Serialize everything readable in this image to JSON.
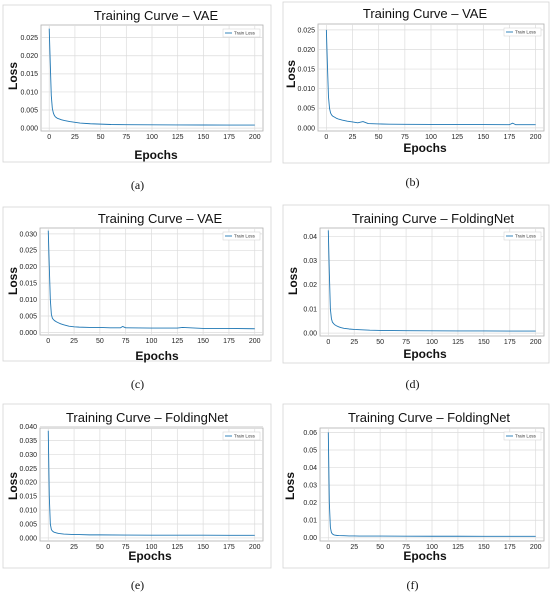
{
  "chart_data": [
    {
      "type": "line",
      "title": "Training Curve – VAE",
      "xlabel": "Epochs",
      "ylabel": "Loss",
      "caption": "(a)",
      "xlim": [
        -8,
        208
      ],
      "ylim": [
        -0.0008,
        0.0285
      ],
      "xticks": [
        0,
        25,
        50,
        75,
        100,
        125,
        150,
        175,
        200
      ],
      "yticks": [
        0.0,
        0.005,
        0.01,
        0.015,
        0.02,
        0.025
      ],
      "ytick_labels": [
        "0.000",
        "0.005",
        "0.010",
        "0.015",
        "0.020",
        "0.025"
      ],
      "grid": true,
      "legend_position": "top-right",
      "series": [
        {
          "name": "Train Loss",
          "color": "#1f77b4",
          "x": [
            0,
            1,
            2,
            3,
            4,
            5,
            6,
            8,
            10,
            12,
            15,
            20,
            25,
            30,
            40,
            50,
            60,
            75,
            100,
            125,
            150,
            175,
            200
          ],
          "y": [
            0.0275,
            0.018,
            0.009,
            0.0055,
            0.0042,
            0.0035,
            0.0031,
            0.0027,
            0.0025,
            0.0023,
            0.0021,
            0.0018,
            0.0016,
            0.0014,
            0.0012,
            0.0011,
            0.001,
            0.00095,
            0.0009,
            0.00088,
            0.00086,
            0.00085,
            0.00085
          ]
        }
      ]
    },
    {
      "type": "line",
      "title": "Training Curve – VAE",
      "xlabel": "Epochs",
      "ylabel": "Loss",
      "caption": "(b)",
      "xlim": [
        -8,
        208
      ],
      "ylim": [
        -0.0008,
        0.0265
      ],
      "xticks": [
        0,
        25,
        50,
        75,
        100,
        125,
        150,
        175,
        200
      ],
      "yticks": [
        0.0,
        0.005,
        0.01,
        0.015,
        0.02,
        0.025
      ],
      "ytick_labels": [
        "0.000",
        "0.005",
        "0.010",
        "0.015",
        "0.020",
        "0.025"
      ],
      "grid": true,
      "legend_position": "top-right",
      "series": [
        {
          "name": "Train Loss",
          "color": "#1f77b4",
          "x": [
            0,
            1,
            2,
            3,
            4,
            5,
            6,
            8,
            10,
            12,
            15,
            20,
            25,
            30,
            35,
            40,
            50,
            60,
            75,
            100,
            125,
            150,
            175,
            178,
            181,
            200
          ],
          "y": [
            0.025,
            0.016,
            0.008,
            0.005,
            0.0038,
            0.0033,
            0.003,
            0.0027,
            0.0024,
            0.0022,
            0.002,
            0.0017,
            0.0015,
            0.0013,
            0.0016,
            0.0011,
            0.001,
            0.00095,
            0.0009,
            0.00088,
            0.00085,
            0.00083,
            0.00082,
            0.0012,
            0.0008,
            0.0008
          ]
        }
      ]
    },
    {
      "type": "line",
      "title": "Training Curve – VAE",
      "xlabel": "Epochs",
      "ylabel": "Loss",
      "caption": "(c)",
      "xlim": [
        -8,
        208
      ],
      "ylim": [
        -0.0008,
        0.0318
      ],
      "xticks": [
        0,
        25,
        50,
        75,
        100,
        125,
        150,
        175,
        200
      ],
      "yticks": [
        0.0,
        0.005,
        0.01,
        0.015,
        0.02,
        0.025,
        0.03
      ],
      "ytick_labels": [
        "0.000",
        "0.005",
        "0.010",
        "0.015",
        "0.020",
        "0.025",
        "0.030"
      ],
      "grid": true,
      "legend_position": "top-right",
      "series": [
        {
          "name": "Train Loss",
          "color": "#1f77b4",
          "x": [
            0,
            1,
            2,
            3,
            4,
            5,
            6,
            8,
            10,
            12,
            15,
            20,
            25,
            30,
            40,
            50,
            60,
            70,
            72,
            75,
            100,
            125,
            130,
            150,
            175,
            200
          ],
          "y": [
            0.031,
            0.02,
            0.01,
            0.0055,
            0.0043,
            0.0039,
            0.0036,
            0.0032,
            0.0029,
            0.0026,
            0.0023,
            0.0019,
            0.0017,
            0.0016,
            0.0015,
            0.0015,
            0.0014,
            0.0014,
            0.0018,
            0.0014,
            0.0013,
            0.0013,
            0.0015,
            0.0012,
            0.0012,
            0.0011
          ]
        }
      ]
    },
    {
      "type": "line",
      "title": "Training Curve – FoldingNet",
      "xlabel": "Epochs",
      "ylabel": "Loss",
      "caption": "(d)",
      "xlim": [
        -8,
        208
      ],
      "ylim": [
        -0.0012,
        0.0435
      ],
      "xticks": [
        0,
        25,
        50,
        75,
        100,
        125,
        150,
        175,
        200
      ],
      "yticks": [
        0.0,
        0.01,
        0.02,
        0.03,
        0.04
      ],
      "ytick_labels": [
        "0.00",
        "0.01",
        "0.02",
        "0.03",
        "0.04"
      ],
      "grid": true,
      "legend_position": "top-right",
      "series": [
        {
          "name": "Train Loss",
          "color": "#1f77b4",
          "x": [
            0,
            1,
            2,
            3,
            4,
            5,
            6,
            8,
            10,
            12,
            15,
            20,
            25,
            30,
            40,
            50,
            75,
            100,
            125,
            150,
            175,
            200
          ],
          "y": [
            0.0425,
            0.025,
            0.01,
            0.006,
            0.0045,
            0.004,
            0.0035,
            0.003,
            0.0026,
            0.0023,
            0.002,
            0.0017,
            0.0015,
            0.0014,
            0.0012,
            0.0011,
            0.001,
            0.00095,
            0.0009,
            0.00088,
            0.00086,
            0.00085
          ]
        }
      ]
    },
    {
      "type": "line",
      "title": "Training Curve – FoldingNet",
      "xlabel": "Epochs",
      "ylabel": "Loss",
      "caption": "(e)",
      "xlim": [
        -8,
        208
      ],
      "ylim": [
        -0.0011,
        0.0395
      ],
      "xticks": [
        0,
        25,
        50,
        75,
        100,
        125,
        150,
        175,
        200
      ],
      "yticks": [
        0.0,
        0.005,
        0.01,
        0.015,
        0.02,
        0.025,
        0.03,
        0.035,
        0.04
      ],
      "ytick_labels": [
        "0.000",
        "0.005",
        "0.010",
        "0.015",
        "0.020",
        "0.025",
        "0.030",
        "0.035",
        "0.040"
      ],
      "grid": true,
      "legend_position": "top-right",
      "series": [
        {
          "name": "Train Loss",
          "color": "#1f77b4",
          "x": [
            0,
            1,
            2,
            3,
            4,
            5,
            6,
            8,
            10,
            15,
            20,
            25,
            30,
            40,
            50,
            75,
            100,
            125,
            150,
            175,
            200
          ],
          "y": [
            0.0385,
            0.015,
            0.005,
            0.003,
            0.0025,
            0.0022,
            0.002,
            0.0018,
            0.0016,
            0.0014,
            0.0013,
            0.0012,
            0.0012,
            0.0011,
            0.0011,
            0.00105,
            0.001,
            0.001,
            0.00098,
            0.00096,
            0.00095
          ]
        }
      ]
    },
    {
      "type": "line",
      "title": "Training Curve – FoldingNet",
      "xlabel": "Epochs",
      "ylabel": "Loss",
      "caption": "(f)",
      "xlim": [
        -8,
        208
      ],
      "ylim": [
        -0.0018,
        0.0625
      ],
      "xticks": [
        0,
        25,
        50,
        75,
        100,
        125,
        150,
        175,
        200
      ],
      "yticks": [
        0.0,
        0.01,
        0.02,
        0.03,
        0.04,
        0.05,
        0.06
      ],
      "ytick_labels": [
        "0.00",
        "0.01",
        "0.02",
        "0.03",
        "0.04",
        "0.05",
        "0.06"
      ],
      "grid": true,
      "legend_position": "top-right",
      "series": [
        {
          "name": "Train Loss",
          "color": "#1f77b4",
          "x": [
            0,
            1,
            2,
            3,
            4,
            5,
            6,
            8,
            10,
            15,
            20,
            25,
            30,
            40,
            50,
            75,
            100,
            125,
            150,
            175,
            200
          ],
          "y": [
            0.06,
            0.02,
            0.006,
            0.003,
            0.0022,
            0.0018,
            0.0016,
            0.0014,
            0.0013,
            0.0012,
            0.0011,
            0.0011,
            0.001,
            0.001,
            0.001,
            0.00095,
            0.0009,
            0.0009,
            0.00088,
            0.00086,
            0.00085
          ]
        }
      ]
    }
  ]
}
